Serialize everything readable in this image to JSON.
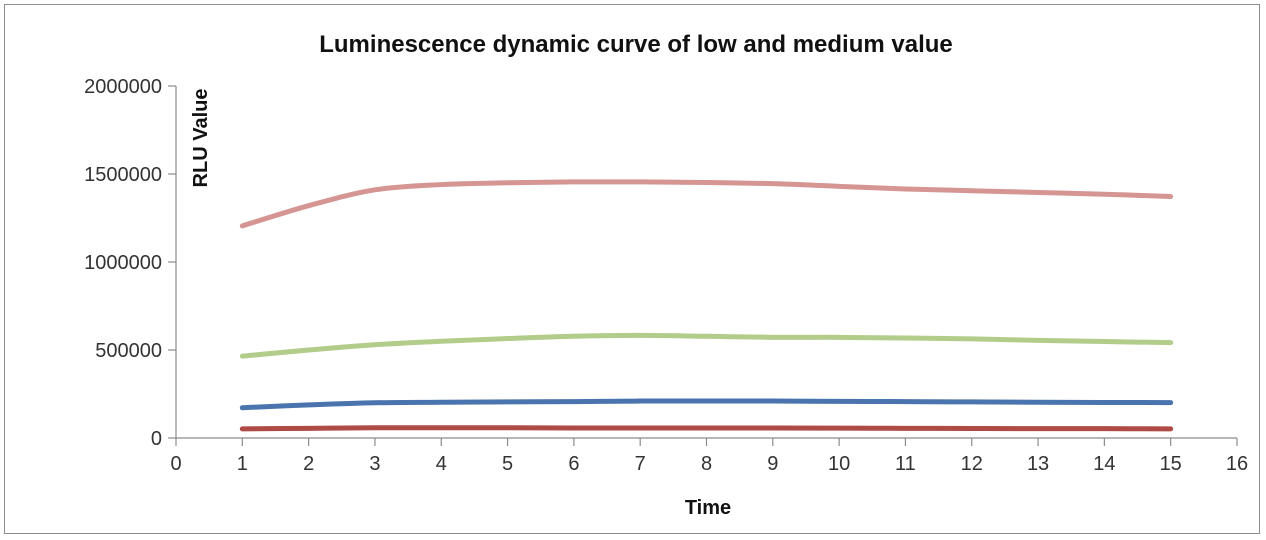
{
  "chart_data": {
    "type": "line",
    "title": "Luminescence dynamic curve of low and medium value",
    "xlabel": "Time",
    "ylabel": "RLU Value",
    "xlim": [
      0,
      16
    ],
    "ylim": [
      0,
      2000000
    ],
    "x_ticks": [
      "0",
      "1",
      "2",
      "3",
      "4",
      "5",
      "6",
      "7",
      "8",
      "9",
      "10",
      "11",
      "12",
      "13",
      "14",
      "15",
      "16"
    ],
    "y_ticks": [
      "0",
      "500000",
      "1000000",
      "1500000",
      "2000000"
    ],
    "x": [
      1,
      2,
      3,
      4,
      5,
      6,
      7,
      8,
      9,
      10,
      11,
      12,
      13,
      14,
      15
    ],
    "grid": false,
    "legend": "none",
    "smooth": true,
    "series": [
      {
        "color": "#d49593",
        "values": [
          1205000,
          1320000,
          1410000,
          1440000,
          1450000,
          1455000,
          1455000,
          1452000,
          1445000,
          1430000,
          1415000,
          1405000,
          1395000,
          1385000,
          1372000
        ]
      },
      {
        "color": "#b2cc8a",
        "values": [
          465000,
          500000,
          530000,
          550000,
          565000,
          578000,
          583000,
          578000,
          572000,
          572000,
          568000,
          563000,
          555000,
          548000,
          542000
        ]
      },
      {
        "color": "#4a74ad",
        "values": [
          172000,
          188000,
          200000,
          203000,
          205000,
          207000,
          210000,
          210000,
          210000,
          208000,
          207000,
          205000,
          203000,
          202000,
          201000
        ]
      },
      {
        "color": "#b04a45",
        "values": [
          52000,
          55000,
          58000,
          58000,
          58000,
          57000,
          57000,
          57000,
          57000,
          56000,
          55000,
          54000,
          53000,
          53000,
          52000
        ]
      }
    ]
  }
}
